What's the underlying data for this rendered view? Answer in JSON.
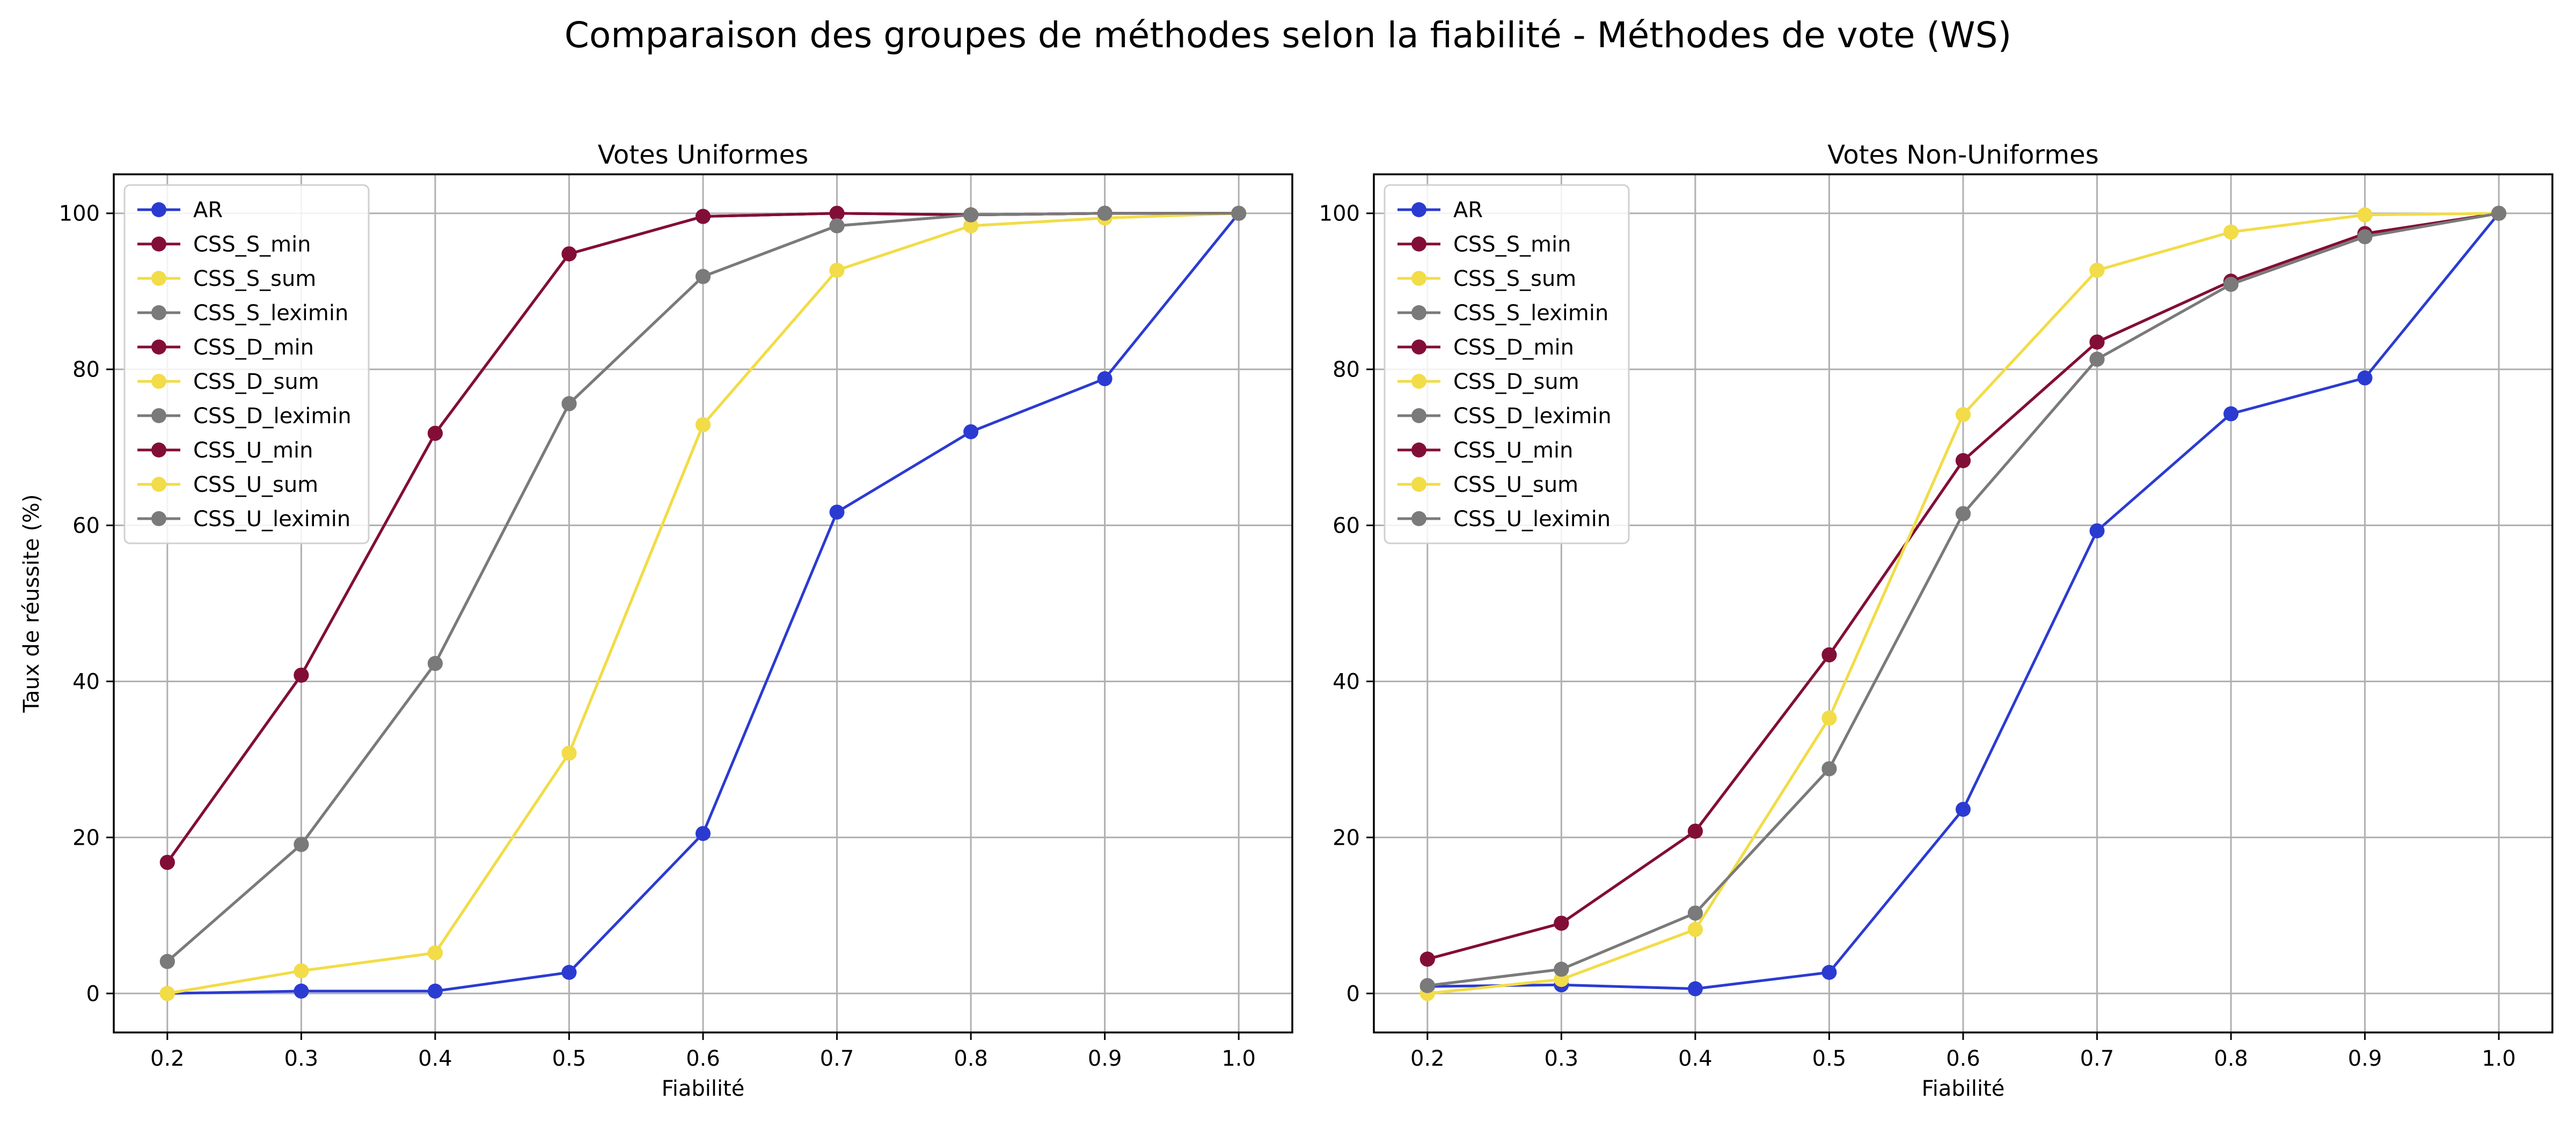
{
  "figure": {
    "suptitle": "Comparaison des groupes de méthodes selon la fiabilité - Méthodes de vote (WS)"
  },
  "colors": {
    "blue": "#2b3bd1",
    "maroon": "#820e37",
    "yellow": "#f2dc48",
    "gray": "#7a7a7a",
    "grid": "#b0b0b0",
    "axis": "#000000"
  },
  "chart_data": [
    {
      "type": "line",
      "title": "Votes Uniformes",
      "xlabel": "Fiabilité",
      "ylabel": "Taux de réussite (%)",
      "x": [
        0.2,
        0.3,
        0.4,
        0.5,
        0.6,
        0.7,
        0.8,
        0.9,
        1.0
      ],
      "xticks": [
        "0.2",
        "0.3",
        "0.4",
        "0.5",
        "0.6",
        "0.7",
        "0.8",
        "0.9",
        "1.0"
      ],
      "yticks": [
        "0",
        "20",
        "40",
        "60",
        "80",
        "100"
      ],
      "xlim": [
        0.16,
        1.04
      ],
      "ylim": [
        -5,
        105
      ],
      "grid": true,
      "legend": "upper-left",
      "series": [
        {
          "name": "AR",
          "color": "blue",
          "values": [
            0,
            0.3,
            0.3,
            2.7,
            20.5,
            61.7,
            72.0,
            78.8,
            100
          ]
        },
        {
          "name": "CSS_S_min",
          "color": "maroon",
          "values": [
            16.8,
            40.8,
            71.8,
            94.8,
            99.6,
            100,
            99.8,
            100,
            100
          ]
        },
        {
          "name": "CSS_S_sum",
          "color": "yellow",
          "values": [
            0,
            2.9,
            5.2,
            30.8,
            72.9,
            92.7,
            98.4,
            99.4,
            100
          ]
        },
        {
          "name": "CSS_S_leximin",
          "color": "gray",
          "values": [
            4.1,
            19.1,
            42.3,
            75.6,
            91.9,
            98.4,
            99.8,
            100,
            100
          ]
        },
        {
          "name": "CSS_D_min",
          "color": "maroon",
          "values": [
            16.8,
            40.8,
            71.8,
            94.8,
            99.6,
            100,
            99.8,
            100,
            100
          ]
        },
        {
          "name": "CSS_D_sum",
          "color": "yellow",
          "values": [
            0,
            2.9,
            5.2,
            30.8,
            72.9,
            92.7,
            98.4,
            99.4,
            100
          ]
        },
        {
          "name": "CSS_D_leximin",
          "color": "gray",
          "values": [
            4.1,
            19.1,
            42.3,
            75.6,
            91.9,
            98.4,
            99.8,
            100,
            100
          ]
        },
        {
          "name": "CSS_U_min",
          "color": "maroon",
          "values": [
            16.8,
            40.8,
            71.8,
            94.8,
            99.6,
            100,
            99.8,
            100,
            100
          ]
        },
        {
          "name": "CSS_U_sum",
          "color": "yellow",
          "values": [
            0,
            2.9,
            5.2,
            30.8,
            72.9,
            92.7,
            98.4,
            99.4,
            100
          ]
        },
        {
          "name": "CSS_U_leximin",
          "color": "gray",
          "values": [
            4.1,
            19.1,
            42.3,
            75.6,
            91.9,
            98.4,
            99.8,
            100,
            100
          ]
        }
      ]
    },
    {
      "type": "line",
      "title": "Votes Non-Uniformes",
      "xlabel": "Fiabilité",
      "ylabel": "",
      "x": [
        0.2,
        0.3,
        0.4,
        0.5,
        0.6,
        0.7,
        0.8,
        0.9,
        1.0
      ],
      "xticks": [
        "0.2",
        "0.3",
        "0.4",
        "0.5",
        "0.6",
        "0.7",
        "0.8",
        "0.9",
        "1.0"
      ],
      "yticks": [
        "0",
        "20",
        "40",
        "60",
        "80",
        "100"
      ],
      "xlim": [
        0.16,
        1.04
      ],
      "ylim": [
        -5,
        105
      ],
      "grid": true,
      "legend": "upper-left",
      "series": [
        {
          "name": "AR",
          "color": "blue",
          "values": [
            0.9,
            1.1,
            0.6,
            2.7,
            23.6,
            59.3,
            74.3,
            78.9,
            100
          ]
        },
        {
          "name": "CSS_S_min",
          "color": "maroon",
          "values": [
            4.4,
            9.0,
            20.8,
            43.4,
            68.3,
            83.5,
            91.3,
            97.4,
            100
          ]
        },
        {
          "name": "CSS_S_sum",
          "color": "yellow",
          "values": [
            0,
            1.8,
            8.2,
            35.3,
            74.2,
            92.7,
            97.6,
            99.8,
            100
          ]
        },
        {
          "name": "CSS_S_leximin",
          "color": "gray",
          "values": [
            1.0,
            3.1,
            10.3,
            28.8,
            61.5,
            81.3,
            90.9,
            97.0,
            100
          ]
        },
        {
          "name": "CSS_D_min",
          "color": "maroon",
          "values": [
            4.4,
            9.0,
            20.8,
            43.4,
            68.3,
            83.5,
            91.3,
            97.4,
            100
          ]
        },
        {
          "name": "CSS_D_sum",
          "color": "yellow",
          "values": [
            0,
            1.8,
            8.2,
            35.3,
            74.2,
            92.7,
            97.6,
            99.8,
            100
          ]
        },
        {
          "name": "CSS_D_leximin",
          "color": "gray",
          "values": [
            1.0,
            3.1,
            10.3,
            28.8,
            61.5,
            81.3,
            90.9,
            97.0,
            100
          ]
        },
        {
          "name": "CSS_U_min",
          "color": "maroon",
          "values": [
            4.4,
            9.0,
            20.8,
            43.4,
            68.3,
            83.5,
            91.3,
            97.4,
            100
          ]
        },
        {
          "name": "CSS_U_sum",
          "color": "yellow",
          "values": [
            0,
            1.8,
            8.2,
            35.3,
            74.2,
            92.7,
            97.6,
            99.8,
            100
          ]
        },
        {
          "name": "CSS_U_leximin",
          "color": "gray",
          "values": [
            1.0,
            3.1,
            10.3,
            28.8,
            61.5,
            81.3,
            90.9,
            97.0,
            100
          ]
        }
      ]
    }
  ]
}
